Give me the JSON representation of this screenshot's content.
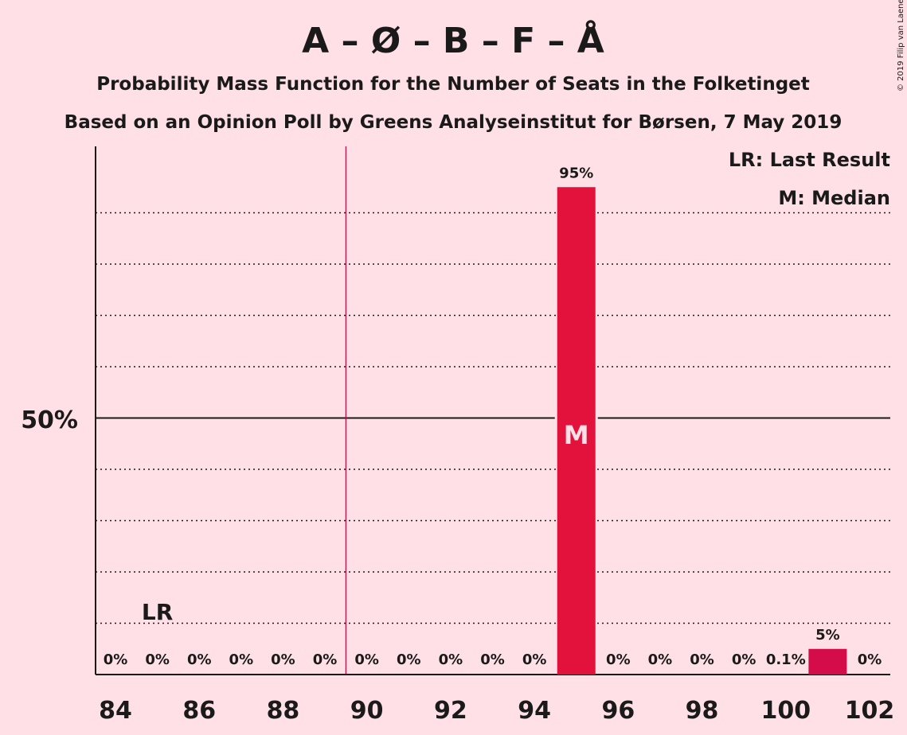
{
  "chart_data": {
    "type": "bar",
    "title": "A – Ø – B – F – Å",
    "subtitle1": "Probability Mass Function for the Number of Seats in the Folketinget",
    "subtitle2": "Based on an Opinion Poll by Greens Analyseinstitut for Børsen, 7 May 2019",
    "copyright": "© 2019 Filip van Laenen",
    "x": [
      84,
      85,
      86,
      87,
      88,
      89,
      90,
      91,
      92,
      93,
      94,
      95,
      96,
      97,
      98,
      99,
      100,
      101,
      102
    ],
    "values": [
      0,
      0,
      0,
      0,
      0,
      0,
      0,
      0,
      0,
      0,
      0,
      95,
      0,
      0,
      0,
      0,
      0.1,
      5,
      0
    ],
    "value_labels": [
      "0%",
      "0%",
      "0%",
      "0%",
      "0%",
      "0%",
      "0%",
      "0%",
      "0%",
      "0%",
      "0%",
      "95%",
      "0%",
      "0%",
      "0%",
      "0%",
      "0.1%",
      "5%",
      "0%"
    ],
    "xticks": [
      84,
      86,
      88,
      90,
      92,
      94,
      96,
      98,
      100,
      102
    ],
    "ytick_label": "50%",
    "ytick_value": 50,
    "ylim": [
      0,
      103
    ],
    "majority_line_x": 89.5,
    "last_result_x": 85,
    "last_result_label": "LR",
    "median_x": 95,
    "median_label": "M",
    "legend": [
      "LR: Last Result",
      "M: Median"
    ],
    "legend_position": "top-right",
    "colors": {
      "bar": "#e3123c",
      "bar_highlight": "#d40d4a",
      "background": "#ffe0e6",
      "majority_line": "#c8003c",
      "text": "#1a1a1a"
    }
  }
}
